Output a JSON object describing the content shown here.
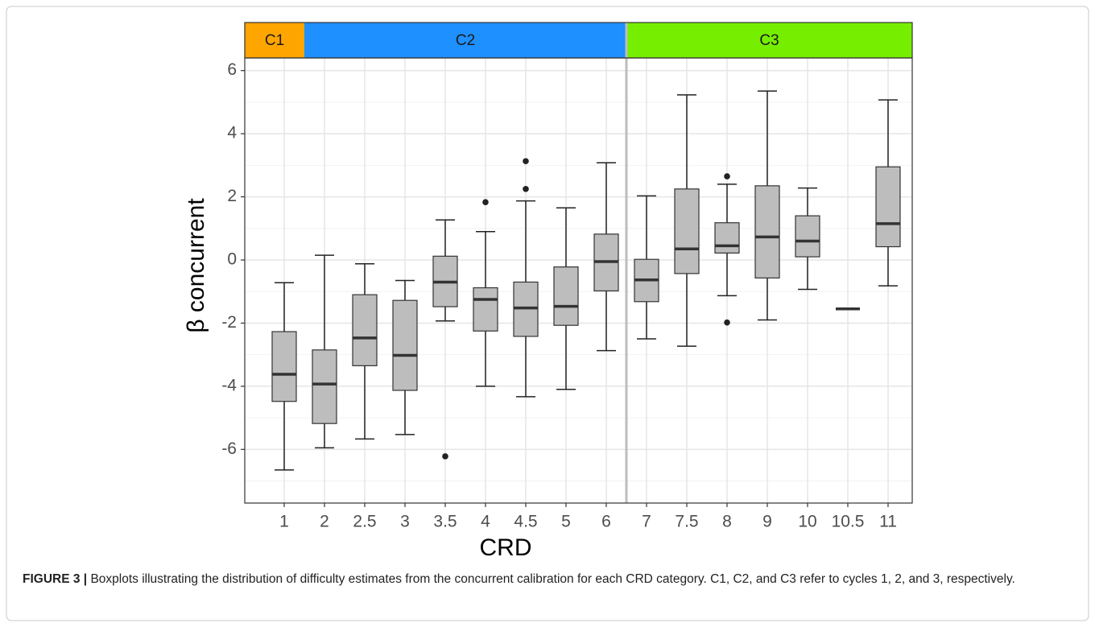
{
  "chart_data": {
    "type": "box",
    "x_label": "CRD",
    "y_label": "β concurrent",
    "categories": [
      "1",
      "2",
      "2.5",
      "3",
      "3.5",
      "4",
      "4.5",
      "5",
      "6",
      "7",
      "7.5",
      "8",
      "9",
      "10",
      "10.5",
      "11"
    ],
    "min": [
      -6.65,
      -5.95,
      -5.67,
      -5.53,
      -1.93,
      -4.0,
      -4.33,
      -4.1,
      -2.87,
      -2.5,
      -2.73,
      -1.13,
      -1.9,
      -0.93,
      -1.55,
      -0.82
    ],
    "q1": [
      -4.48,
      -5.18,
      -3.35,
      -4.13,
      -1.48,
      -2.25,
      -2.42,
      -2.07,
      -0.98,
      -1.32,
      -0.43,
      0.22,
      -0.57,
      0.1,
      -1.55,
      0.42
    ],
    "median": [
      -3.62,
      -3.93,
      -2.47,
      -3.02,
      -0.7,
      -1.25,
      -1.52,
      -1.47,
      -0.05,
      -0.63,
      0.35,
      0.45,
      0.73,
      0.6,
      -1.55,
      1.15
    ],
    "q3": [
      -2.27,
      -2.85,
      -1.1,
      -1.28,
      0.12,
      -0.88,
      -0.7,
      -0.22,
      0.82,
      0.02,
      2.25,
      1.18,
      2.35,
      1.4,
      -1.55,
      2.95
    ],
    "max": [
      -0.72,
      0.15,
      -0.12,
      -0.65,
      1.27,
      0.9,
      1.87,
      1.65,
      3.08,
      2.03,
      5.23,
      2.4,
      5.35,
      2.28,
      -1.55,
      5.07
    ],
    "outliers": [
      [],
      [],
      [],
      [],
      [
        -6.22
      ],
      [
        1.83
      ],
      [
        2.25,
        3.13
      ],
      [],
      [],
      [],
      [],
      [
        2.65,
        -1.98
      ],
      [],
      [],
      [],
      []
    ],
    "color": "#bdbdbd",
    "ylim": [
      -7.7,
      6.4
    ],
    "yticks": [
      -6,
      -4,
      -2,
      0,
      2,
      4,
      6
    ],
    "grid": true,
    "cycles": [
      {
        "label": "C1",
        "color": "#ffa500",
        "count": 1
      },
      {
        "label": "C2",
        "color": "#1e90ff",
        "count": 8
      },
      {
        "label": "C3",
        "color": "#76ee00",
        "count": 7,
        "divider": true
      }
    ]
  },
  "caption": {
    "label": "FIGURE 3 |",
    "text": "Boxplots illustrating the distribution of difficulty estimates from the concurrent calibration for each CRD category. C1, C2, and C3 refer to cycles 1, 2, and 3, respectively."
  }
}
